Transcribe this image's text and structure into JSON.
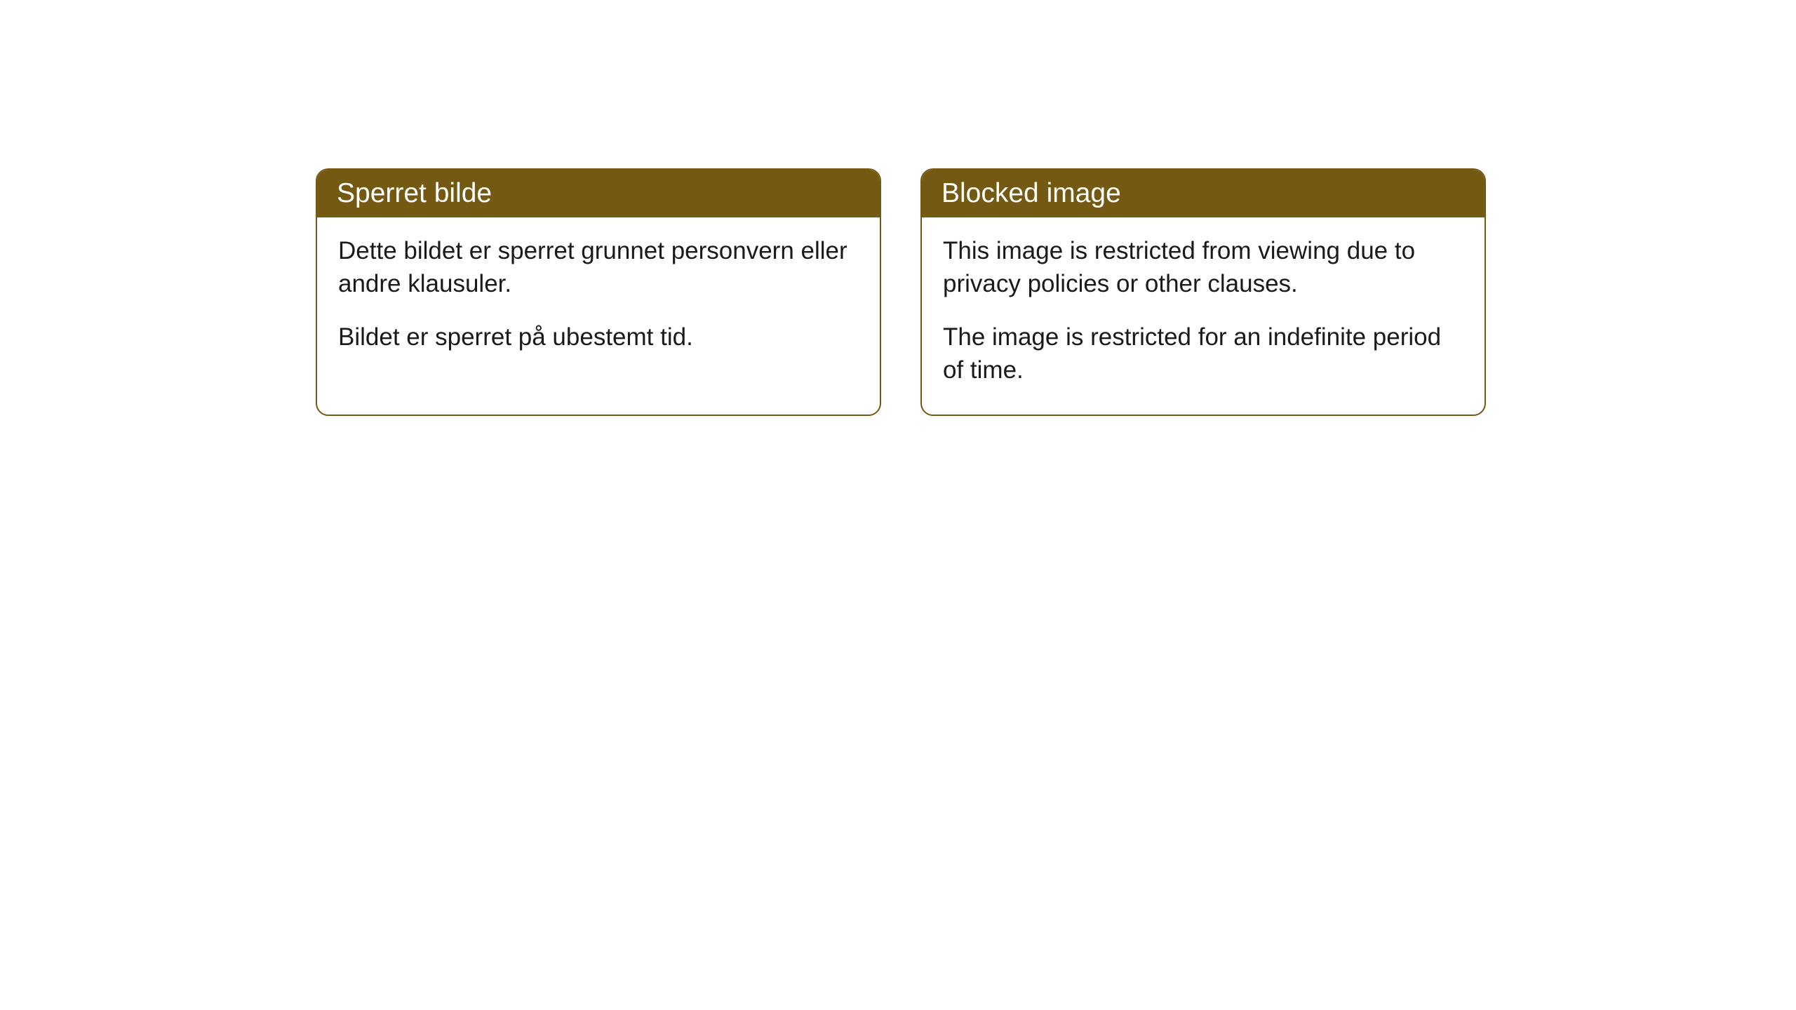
{
  "cards": [
    {
      "title": "Sperret bilde",
      "paragraph1": "Dette bildet er sperret grunnet personvern eller andre klausuler.",
      "paragraph2": "Bildet er sperret på ubestemt tid."
    },
    {
      "title": "Blocked image",
      "paragraph1": "This image is restricted from viewing due to privacy policies or other clauses.",
      "paragraph2": "The image is restricted for an indefinite period of time."
    }
  ],
  "styling": {
    "header_bg_color": "#735911",
    "header_text_color": "#ffffff",
    "border_color": "#735911",
    "body_bg_color": "#ffffff",
    "body_text_color": "#1a1a1a",
    "border_radius": 18,
    "header_fontsize": 39,
    "body_fontsize": 35
  }
}
